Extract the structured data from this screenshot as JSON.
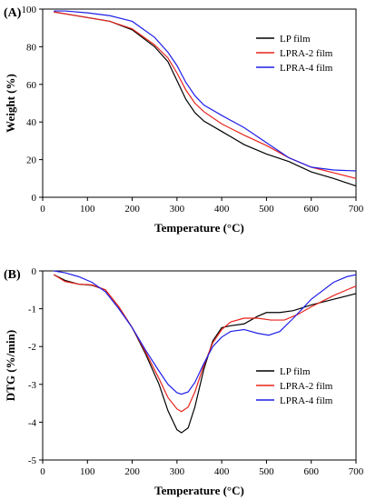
{
  "chart_data": [
    {
      "type": "line",
      "panel_label": "(A)",
      "xlabel": "Temperature (°C)",
      "ylabel": "Weight (%)",
      "xlim": [
        0,
        700
      ],
      "ylim": [
        0,
        100
      ],
      "xticks": [
        0,
        100,
        200,
        300,
        400,
        500,
        600,
        700
      ],
      "yticks": [
        0,
        20,
        40,
        60,
        80,
        100
      ],
      "grid": false,
      "legend_position": "top-right",
      "series": [
        {
          "name": "LP film",
          "color": "#000000",
          "points": [
            [
              25,
              98.5
            ],
            [
              50,
              97.5
            ],
            [
              100,
              95.5
            ],
            [
              150,
              93.5
            ],
            [
              200,
              89
            ],
            [
              250,
              80
            ],
            [
              280,
              72
            ],
            [
              300,
              62
            ],
            [
              320,
              52
            ],
            [
              340,
              45
            ],
            [
              360,
              40.5
            ],
            [
              400,
              35
            ],
            [
              450,
              28
            ],
            [
              500,
              23
            ],
            [
              550,
              19
            ],
            [
              600,
              13.5
            ],
            [
              650,
              10
            ],
            [
              700,
              6
            ]
          ]
        },
        {
          "name": "LPRA-2 film",
          "color": "#e8231c",
          "points": [
            [
              25,
              98.5
            ],
            [
              50,
              97.5
            ],
            [
              100,
              95.5
            ],
            [
              150,
              93.5
            ],
            [
              200,
              89.5
            ],
            [
              250,
              81
            ],
            [
              280,
              74
            ],
            [
              300,
              66
            ],
            [
              320,
              57
            ],
            [
              340,
              50
            ],
            [
              360,
              45.5
            ],
            [
              400,
              39
            ],
            [
              450,
              33
            ],
            [
              500,
              27.5
            ],
            [
              550,
              21
            ],
            [
              600,
              16
            ],
            [
              650,
              13
            ],
            [
              700,
              10
            ]
          ]
        },
        {
          "name": "LPRA-4 film",
          "color": "#1f1fe8",
          "points": [
            [
              25,
              99
            ],
            [
              50,
              99
            ],
            [
              100,
              98
            ],
            [
              150,
              96.5
            ],
            [
              200,
              93.5
            ],
            [
              250,
              85
            ],
            [
              280,
              77
            ],
            [
              300,
              70
            ],
            [
              320,
              61
            ],
            [
              340,
              54
            ],
            [
              360,
              49
            ],
            [
              400,
              43.5
            ],
            [
              450,
              37
            ],
            [
              500,
              29
            ],
            [
              550,
              21
            ],
            [
              600,
              16
            ],
            [
              650,
              14.5
            ],
            [
              700,
              14
            ]
          ]
        }
      ]
    },
    {
      "type": "line",
      "panel_label": "(B)",
      "xlabel": "Temperature (°C)",
      "ylabel": "DTG (%/min)",
      "xlim": [
        0,
        700
      ],
      "ylim": [
        -5,
        0
      ],
      "xticks": [
        0,
        100,
        200,
        300,
        400,
        500,
        600,
        700
      ],
      "yticks": [
        -5,
        -4,
        -3,
        -2,
        -1,
        0
      ],
      "grid": false,
      "legend_position": "bottom-right",
      "series": [
        {
          "name": "LP film",
          "color": "#000000",
          "points": [
            [
              25,
              -0.1
            ],
            [
              50,
              -0.25
            ],
            [
              80,
              -0.35
            ],
            [
              110,
              -0.38
            ],
            [
              140,
              -0.5
            ],
            [
              170,
              -0.95
            ],
            [
              200,
              -1.5
            ],
            [
              230,
              -2.2
            ],
            [
              260,
              -3.0
            ],
            [
              280,
              -3.7
            ],
            [
              300,
              -4.2
            ],
            [
              310,
              -4.28
            ],
            [
              325,
              -4.15
            ],
            [
              340,
              -3.6
            ],
            [
              360,
              -2.6
            ],
            [
              380,
              -1.85
            ],
            [
              400,
              -1.5
            ],
            [
              420,
              -1.45
            ],
            [
              450,
              -1.4
            ],
            [
              480,
              -1.2
            ],
            [
              500,
              -1.1
            ],
            [
              530,
              -1.1
            ],
            [
              560,
              -1.05
            ],
            [
              600,
              -0.9
            ],
            [
              650,
              -0.75
            ],
            [
              700,
              -0.6
            ]
          ]
        },
        {
          "name": "LPRA-2 film",
          "color": "#e8231c",
          "points": [
            [
              25,
              -0.1
            ],
            [
              50,
              -0.28
            ],
            [
              80,
              -0.35
            ],
            [
              110,
              -0.37
            ],
            [
              140,
              -0.5
            ],
            [
              170,
              -0.95
            ],
            [
              200,
              -1.5
            ],
            [
              230,
              -2.15
            ],
            [
              260,
              -2.85
            ],
            [
              280,
              -3.35
            ],
            [
              300,
              -3.65
            ],
            [
              310,
              -3.72
            ],
            [
              325,
              -3.6
            ],
            [
              340,
              -3.2
            ],
            [
              360,
              -2.5
            ],
            [
              380,
              -1.9
            ],
            [
              400,
              -1.55
            ],
            [
              420,
              -1.35
            ],
            [
              450,
              -1.25
            ],
            [
              480,
              -1.25
            ],
            [
              510,
              -1.3
            ],
            [
              540,
              -1.3
            ],
            [
              570,
              -1.15
            ],
            [
              600,
              -0.95
            ],
            [
              650,
              -0.65
            ],
            [
              700,
              -0.4
            ]
          ]
        },
        {
          "name": "LPRA-4 film",
          "color": "#1f1fe8",
          "points": [
            [
              25,
              0.0
            ],
            [
              50,
              -0.05
            ],
            [
              80,
              -0.15
            ],
            [
              110,
              -0.3
            ],
            [
              140,
              -0.55
            ],
            [
              170,
              -1.0
            ],
            [
              200,
              -1.5
            ],
            [
              230,
              -2.1
            ],
            [
              260,
              -2.65
            ],
            [
              280,
              -3.0
            ],
            [
              300,
              -3.22
            ],
            [
              310,
              -3.26
            ],
            [
              325,
              -3.2
            ],
            [
              340,
              -2.95
            ],
            [
              360,
              -2.45
            ],
            [
              380,
              -2.0
            ],
            [
              400,
              -1.75
            ],
            [
              420,
              -1.6
            ],
            [
              450,
              -1.55
            ],
            [
              480,
              -1.65
            ],
            [
              505,
              -1.7
            ],
            [
              530,
              -1.6
            ],
            [
              560,
              -1.25
            ],
            [
              600,
              -0.75
            ],
            [
              650,
              -0.3
            ],
            [
              680,
              -0.15
            ],
            [
              700,
              -0.1
            ]
          ]
        }
      ]
    }
  ]
}
